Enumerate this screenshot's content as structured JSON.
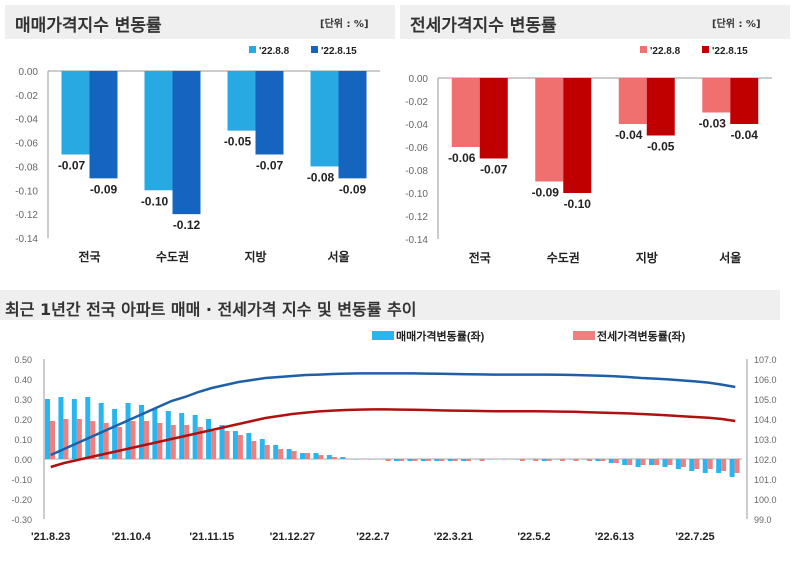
{
  "chart_data": [
    {
      "type": "bar",
      "title": "매매가격지수 변동률",
      "unit": "[단위 : %]",
      "categories": [
        "전국",
        "수도권",
        "지방",
        "서울"
      ],
      "series": [
        {
          "name": "'22.8.8",
          "values": [
            -0.07,
            -0.1,
            -0.05,
            -0.08
          ],
          "color": "#29a9e1"
        },
        {
          "name": "'22.8.15",
          "values": [
            -0.09,
            -0.12,
            -0.07,
            -0.09
          ],
          "color": "#1565c0"
        }
      ],
      "ylim": [
        -0.14,
        0
      ],
      "yticks": [
        "0.00",
        "-0.02",
        "-0.04",
        "-0.06",
        "-0.08",
        "-0.10",
        "-0.12",
        "-0.14"
      ],
      "legend": "top-right"
    },
    {
      "type": "bar",
      "title": "전세가격지수 변동률",
      "unit": "[단위 : %]",
      "categories": [
        "전국",
        "수도권",
        "지방",
        "서울"
      ],
      "series": [
        {
          "name": "'22.8.8",
          "values": [
            -0.06,
            -0.09,
            -0.04,
            -0.03
          ],
          "color": "#f07070"
        },
        {
          "name": "'22.8.15",
          "values": [
            -0.07,
            -0.1,
            -0.05,
            -0.04
          ],
          "color": "#c00000"
        }
      ],
      "ylim": [
        -0.14,
        0
      ],
      "yticks": [
        "0.00",
        "-0.02",
        "-0.04",
        "-0.06",
        "-0.08",
        "-0.10",
        "-0.12",
        "-0.14"
      ],
      "legend": "top-right"
    },
    {
      "type": "bar+line",
      "title": "최근 1년간 전국 아파트 매매 · 전세가격 지수 및 변동률 추이",
      "xticks": [
        "'21.8.23",
        "'21.10.4",
        "'21.11.15",
        "'21.12.27",
        "'22.2.7",
        "'22.3.21",
        "'22.5.2",
        "'22.6.13",
        "'22.7.25"
      ],
      "ylim": [
        -0.3,
        0.5
      ],
      "yticks": [
        "0.50",
        "0.40",
        "0.30",
        "0.20",
        "0.10",
        "0.00",
        "-0.10",
        "-0.20",
        "-0.30"
      ],
      "y2lim": [
        99,
        107
      ],
      "y2ticks": [
        "107.0",
        "106.0",
        "105.0",
        "104.0",
        "103.0",
        "102.0",
        "101.0",
        "100.0",
        "99.0"
      ],
      "series": [
        {
          "name": "매매가격변동률(좌)",
          "color": "#29b6f0",
          "values": [
            0.3,
            0.31,
            0.3,
            0.31,
            0.28,
            0.25,
            0.28,
            0.27,
            0.25,
            0.24,
            0.23,
            0.22,
            0.2,
            0.17,
            0.14,
            0.13,
            0.1,
            0.07,
            0.05,
            0.03,
            0.03,
            0.02,
            0.01,
            0,
            0,
            0,
            -0.01,
            -0.01,
            -0.01,
            -0.01,
            -0.01,
            -0.01,
            0,
            0,
            0,
            0,
            0,
            -0.01,
            0,
            0,
            0,
            -0.01,
            -0.02,
            -0.03,
            -0.04,
            -0.03,
            -0.04,
            -0.05,
            -0.06,
            -0.07,
            -0.07,
            -0.09
          ]
        },
        {
          "name": "전세가격변동률(좌)",
          "color": "#f08080",
          "values": [
            0.19,
            0.2,
            0.2,
            0.19,
            0.18,
            0.16,
            0.19,
            0.19,
            0.18,
            0.17,
            0.17,
            0.16,
            0.14,
            0.14,
            0.12,
            0.09,
            0.07,
            0.05,
            0.04,
            0.03,
            0.02,
            0.01,
            0,
            0,
            0,
            -0.01,
            -0.01,
            -0.01,
            -0.01,
            -0.01,
            -0.01,
            -0.01,
            -0.01,
            0,
            0,
            -0.01,
            -0.01,
            -0.01,
            -0.01,
            -0.01,
            -0.01,
            -0.01,
            -0.02,
            -0.03,
            -0.03,
            -0.03,
            -0.03,
            -0.04,
            -0.05,
            -0.05,
            -0.06,
            -0.07
          ]
        }
      ],
      "index_lines": [
        {
          "color": "#1f5fa8",
          "values": [
            102.2,
            102.5,
            102.8,
            103.1,
            103.4,
            103.7,
            104.0,
            104.3,
            104.6,
            104.9,
            105.1,
            105.35,
            105.55,
            105.7,
            105.85,
            105.95,
            106.05,
            106.1,
            106.15,
            106.2,
            106.22,
            106.25,
            106.27,
            106.28,
            106.28,
            106.28,
            106.28,
            106.28,
            106.27,
            106.26,
            106.25,
            106.24,
            106.23,
            106.22,
            106.22,
            106.22,
            106.22,
            106.22,
            106.21,
            106.2,
            106.18,
            106.16,
            106.14,
            106.1,
            106.05,
            106.02,
            105.98,
            105.93,
            105.88,
            105.82,
            105.72,
            105.6
          ]
        },
        {
          "color": "#b01010",
          "values": [
            101.6,
            101.8,
            101.95,
            102.1,
            102.25,
            102.4,
            102.55,
            102.7,
            102.85,
            103.0,
            103.15,
            103.3,
            103.45,
            103.6,
            103.75,
            103.9,
            104.05,
            104.15,
            104.25,
            104.32,
            104.38,
            104.42,
            104.45,
            104.47,
            104.48,
            104.48,
            104.47,
            104.46,
            104.45,
            104.43,
            104.42,
            104.41,
            104.4,
            104.39,
            104.39,
            104.39,
            104.39,
            104.38,
            104.37,
            104.36,
            104.34,
            104.32,
            104.3,
            104.28,
            104.25,
            104.22,
            104.18,
            104.14,
            104.1,
            104.06,
            104.0,
            103.9
          ]
        }
      ],
      "legend": "top"
    }
  ]
}
